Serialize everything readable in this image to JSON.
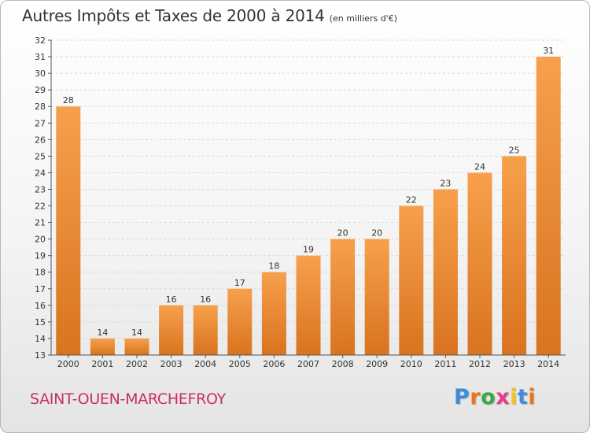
{
  "header": {
    "title": "Autres Impôts et Taxes de 2000 à 2014",
    "unit": "(en milliers d'€)"
  },
  "footer": {
    "city": "SAINT-OUEN-MARCHEFROY",
    "logo_letters": [
      "P",
      "r",
      "o",
      "x",
      "i",
      "t",
      "i"
    ],
    "logo_colors": [
      "#3a8fd8",
      "#e8761e",
      "#3aa844",
      "#e83a8c",
      "#f2c51e",
      "#3a8fd8",
      "#e8761e"
    ]
  },
  "colors": {
    "bar_light": "#f7a04c",
    "bar_dark": "#d9731f",
    "grid": "#d8d8d8",
    "axis": "#555555"
  },
  "chart_data": {
    "type": "bar",
    "categories": [
      "2000",
      "2001",
      "2002",
      "2003",
      "2004",
      "2005",
      "2006",
      "2007",
      "2008",
      "2009",
      "2010",
      "2011",
      "2012",
      "2013",
      "2014"
    ],
    "values": [
      28,
      14,
      14,
      16,
      16,
      17,
      18,
      19,
      20,
      20,
      22,
      23,
      24,
      25,
      31
    ],
    "ylim": [
      13,
      32
    ],
    "yticks": [
      13,
      14,
      15,
      16,
      17,
      18,
      19,
      20,
      21,
      22,
      23,
      24,
      25,
      26,
      27,
      28,
      29,
      30,
      31,
      32
    ],
    "grid": true
  }
}
